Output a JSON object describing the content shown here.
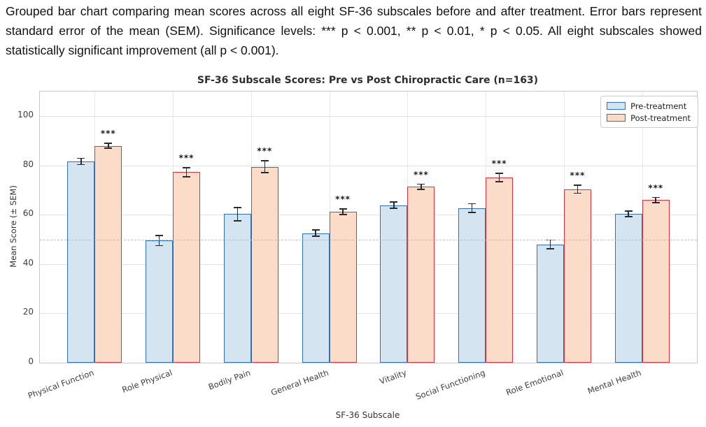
{
  "caption": "Grouped bar chart comparing mean scores across all eight SF-36 subscales before and after treatment. Error bars represent standard error of the mean (SEM). Significance levels: *** p < 0.001, ** p < 0.01, * p < 0.05. All eight subscales showed statistically significant improvement (all p < 0.001).",
  "chart_data": {
    "type": "bar",
    "title": "SF-36 Subscale Scores: Pre vs Post Chiropractic Care (n=163)",
    "xlabel": "SF-36 Subscale",
    "ylabel": "Mean Score (± SEM)",
    "ylim": [
      0,
      110
    ],
    "yticks": [
      0,
      20,
      40,
      60,
      80,
      100
    ],
    "reference_line": 50,
    "grid": true,
    "legend_position": "upper right",
    "categories": [
      "Physical Function",
      "Role Physical",
      "Bodily Pain",
      "General Health",
      "Vitality",
      "Social Functioning",
      "Role Emotional",
      "Mental Health"
    ],
    "series": [
      {
        "name": "Pre-treatment",
        "values": [
          81.7,
          49.6,
          60.3,
          52.6,
          63.9,
          62.7,
          48.0,
          60.4
        ],
        "errors": [
          1.5,
          2.3,
          2.9,
          1.5,
          1.5,
          2.0,
          2.0,
          1.3
        ],
        "fill": "#d5e4f1",
        "edge": "#2e74b5"
      },
      {
        "name": "Post-treatment",
        "values": [
          88.0,
          77.3,
          79.5,
          61.2,
          71.4,
          75.1,
          70.4,
          66.0
        ],
        "errors": [
          1.2,
          2.1,
          2.6,
          1.4,
          1.3,
          1.9,
          1.9,
          1.3
        ],
        "fill": "#fbdcc8",
        "edge": "#c93b44"
      }
    ],
    "significance": [
      "***",
      "***",
      "***",
      "***",
      "***",
      "***",
      "***",
      "***"
    ]
  },
  "colors": {
    "grid": "#e2e2e2",
    "spine": "#c8c8c8",
    "reference_dash": "#bbbbbb",
    "error_bar": "#2a2a2a"
  }
}
